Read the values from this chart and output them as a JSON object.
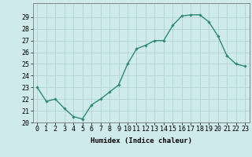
{
  "x": [
    0,
    1,
    2,
    3,
    4,
    5,
    6,
    7,
    8,
    9,
    10,
    11,
    12,
    13,
    14,
    15,
    16,
    17,
    18,
    19,
    20,
    21,
    22,
    23
  ],
  "y": [
    23.0,
    21.8,
    22.0,
    21.2,
    20.5,
    20.3,
    21.5,
    22.0,
    22.6,
    23.2,
    25.0,
    26.3,
    26.6,
    27.0,
    27.0,
    28.3,
    29.1,
    29.2,
    29.2,
    28.6,
    27.4,
    25.7,
    25.0,
    24.8
  ],
  "xlabel": "Humidex (Indice chaleur)",
  "ylim": [
    20,
    30
  ],
  "xlim": [
    -0.5,
    23.5
  ],
  "yticks": [
    20,
    21,
    22,
    23,
    24,
    25,
    26,
    27,
    28,
    29
  ],
  "xticks": [
    0,
    1,
    2,
    3,
    4,
    5,
    6,
    7,
    8,
    9,
    10,
    11,
    12,
    13,
    14,
    15,
    16,
    17,
    18,
    19,
    20,
    21,
    22,
    23
  ],
  "line_color": "#2e8b6e",
  "marker": "D",
  "marker_size": 1.8,
  "bg_color": "#ceeaea",
  "grid_color": "#aed0d0",
  "line_width": 1.0,
  "label_fontsize": 6.5,
  "tick_fontsize": 6.0
}
